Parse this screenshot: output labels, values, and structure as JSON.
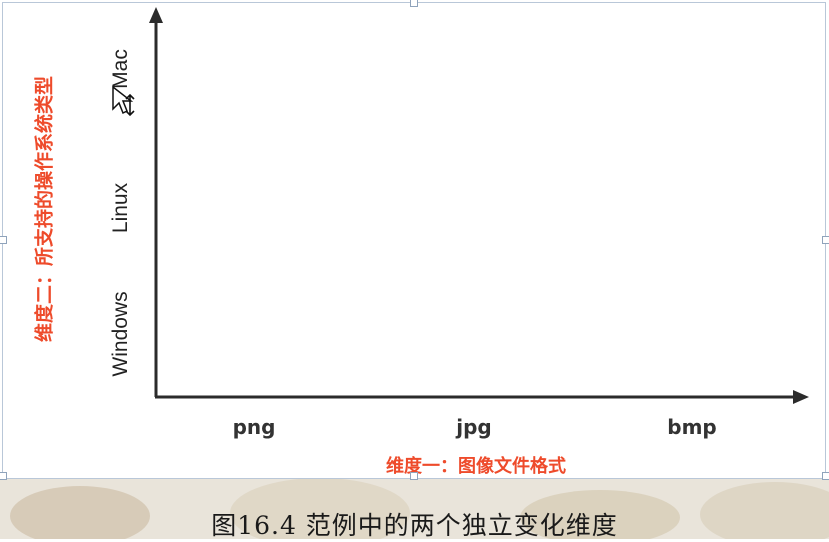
{
  "diagram": {
    "y_axis_title": "维度二：所支持的操作系统类型",
    "y_ticks": [
      "Windows",
      "Linux",
      "Mac"
    ],
    "x_axis_title": "维度一：图像文件格式",
    "x_ticks": [
      "png",
      "jpg",
      "bmp"
    ]
  },
  "caption": "图16.4 范例中的两个独立变化维度",
  "colors": {
    "axis": "#2b2b2b",
    "accent_label": "#ee4b2b",
    "frame_border": "#b9c7d8"
  },
  "icons": [
    "move-cursor-icon"
  ]
}
